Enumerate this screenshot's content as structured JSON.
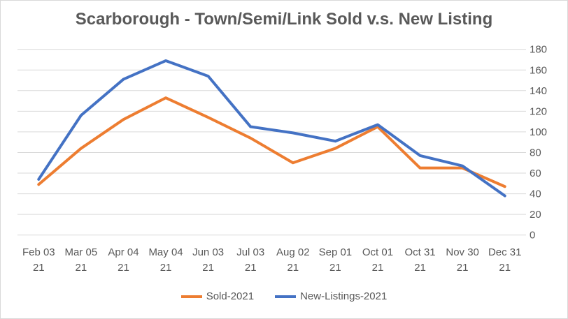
{
  "chart_data": {
    "type": "line",
    "title": "Scarborough - Town/Semi/Link Sold v.s. New Listing",
    "xlabel": "",
    "ylabel": "",
    "ylim": [
      0,
      180
    ],
    "yticks": [
      "0",
      "20",
      "40",
      "60",
      "80",
      "100",
      "120",
      "140",
      "160",
      "180"
    ],
    "y_axis_side": "right",
    "grid": true,
    "legend_position": "bottom",
    "categories": [
      [
        "Feb 03",
        "21"
      ],
      [
        "Mar 05",
        "21"
      ],
      [
        "Apr 04",
        "21"
      ],
      [
        "May 04",
        "21"
      ],
      [
        "Jun 03",
        "21"
      ],
      [
        "Jul 03",
        "21"
      ],
      [
        "Aug 02",
        "21"
      ],
      [
        "Sep 01",
        "21"
      ],
      [
        "Oct 01",
        "21"
      ],
      [
        "Oct 31",
        "21"
      ],
      [
        "Nov 30",
        "21"
      ],
      [
        "Dec 31",
        "21"
      ]
    ],
    "series": [
      {
        "name": "Sold-2021",
        "color": "#ed7d31",
        "values": [
          49,
          84,
          112,
          133,
          114,
          94,
          70,
          84,
          105,
          65,
          65,
          47
        ]
      },
      {
        "name": "New-Listings-2021",
        "color": "#4472c4",
        "values": [
          54,
          116,
          151,
          169,
          154,
          105,
          99,
          91,
          107,
          77,
          67,
          38
        ]
      }
    ]
  }
}
